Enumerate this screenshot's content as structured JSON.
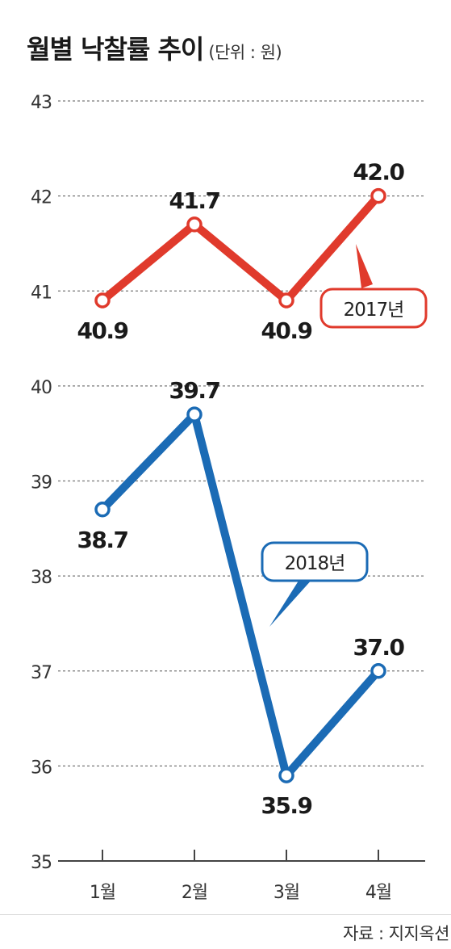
{
  "header": {
    "title": "월별 낙찰률 추이",
    "unit": "(단위 : 원)"
  },
  "source": "자료 : 지지옥션",
  "colors": {
    "series_2017": "#e03a2c",
    "series_2018": "#1b6bb5",
    "grid": "#777777",
    "text": "#1a1a1a"
  },
  "chart_data": {
    "type": "line",
    "categories": [
      "1월",
      "2월",
      "3월",
      "4월"
    ],
    "ylim": [
      35,
      43
    ],
    "yticks": [
      35,
      36,
      37,
      38,
      39,
      40,
      41,
      42,
      43
    ],
    "grid": true,
    "series": [
      {
        "name": "2017년",
        "values": [
          40.9,
          41.7,
          40.9,
          42.0
        ],
        "labels": [
          "40.9",
          "41.7",
          "40.9",
          "42.0"
        ]
      },
      {
        "name": "2018년",
        "values": [
          38.7,
          39.7,
          35.9,
          37.0
        ],
        "labels": [
          "38.7",
          "39.7",
          "35.9",
          "37.0"
        ]
      }
    ]
  }
}
